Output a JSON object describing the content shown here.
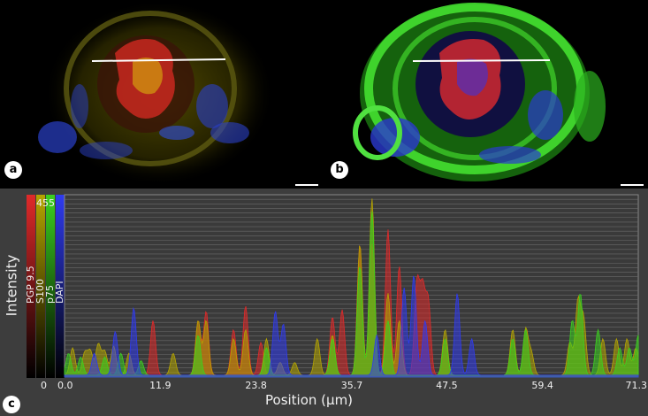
{
  "panels": {
    "a": {
      "label": "a"
    },
    "b": {
      "label": "b"
    },
    "c": {
      "label": "c"
    }
  },
  "colors": {
    "red": "#e02a2a",
    "olive": "#b5a500",
    "green": "#3bd11f",
    "blue": "#2f3bf0",
    "plot_bg": "#3d3d3d",
    "grid": "#6a6a6a"
  },
  "chart_data": {
    "type": "area",
    "xlabel": "Position (µm)",
    "ylabel": "Intensity",
    "x_ticks": [
      "0.0",
      "11.9",
      "23.8",
      "35.7",
      "47.5",
      "59.4",
      "71.3"
    ],
    "xlim": [
      0,
      71.3
    ],
    "legend_bar": {
      "max_label": "455",
      "min_label": "0"
    },
    "series": [
      {
        "name": "PGP 9.5",
        "color": "#e02a2a",
        "peaks": [
          [
            11.0,
            0.3
          ],
          [
            16.6,
            0.3
          ],
          [
            17.6,
            0.35
          ],
          [
            21.0,
            0.25
          ],
          [
            22.5,
            0.38
          ],
          [
            24.4,
            0.18
          ],
          [
            33.3,
            0.32
          ],
          [
            34.5,
            0.36
          ],
          [
            36.7,
            0.72
          ],
          [
            38.2,
            0.72
          ],
          [
            40.2,
            0.8
          ],
          [
            41.6,
            0.6
          ],
          [
            43.8,
            0.5
          ],
          [
            44.5,
            0.45
          ],
          [
            45.2,
            0.4
          ],
          [
            47.3,
            0.2
          ]
        ]
      },
      {
        "name": "S100",
        "color": "#b5a500",
        "peaks": [
          [
            1.0,
            0.15
          ],
          [
            2.5,
            0.12
          ],
          [
            3.2,
            0.13
          ],
          [
            4.2,
            0.17
          ],
          [
            5.0,
            0.13
          ],
          [
            6.1,
            0.16
          ],
          [
            8.0,
            0.12
          ],
          [
            13.5,
            0.12
          ],
          [
            16.6,
            0.3
          ],
          [
            17.6,
            0.3
          ],
          [
            21.0,
            0.2
          ],
          [
            22.5,
            0.25
          ],
          [
            25.1,
            0.2
          ],
          [
            26.8,
            0.07
          ],
          [
            28.6,
            0.07
          ],
          [
            31.4,
            0.2
          ],
          [
            33.3,
            0.22
          ],
          [
            36.7,
            0.72
          ],
          [
            38.2,
            0.97
          ],
          [
            40.2,
            0.45
          ],
          [
            41.6,
            0.3
          ],
          [
            47.3,
            0.25
          ],
          [
            55.7,
            0.25
          ],
          [
            57.3,
            0.25
          ],
          [
            58.0,
            0.12
          ],
          [
            62.8,
            0.18
          ],
          [
            63.8,
            0.4
          ],
          [
            64.5,
            0.3
          ],
          [
            66.9,
            0.2
          ],
          [
            68.6,
            0.2
          ],
          [
            69.9,
            0.2
          ],
          [
            71.0,
            0.15
          ]
        ]
      },
      {
        "name": "p75",
        "color": "#3bd11f",
        "peaks": [
          [
            0.5,
            0.12
          ],
          [
            2.0,
            0.1
          ],
          [
            5.0,
            0.1
          ],
          [
            7.0,
            0.12
          ],
          [
            9.5,
            0.08
          ],
          [
            16.6,
            0.22
          ],
          [
            25.1,
            0.15
          ],
          [
            33.3,
            0.2
          ],
          [
            36.7,
            0.6
          ],
          [
            38.2,
            0.9
          ],
          [
            40.2,
            0.3
          ],
          [
            47.3,
            0.2
          ],
          [
            55.7,
            0.2
          ],
          [
            57.3,
            0.25
          ],
          [
            63.1,
            0.3
          ],
          [
            64.1,
            0.45
          ],
          [
            66.3,
            0.25
          ],
          [
            69.0,
            0.15
          ],
          [
            70.2,
            0.15
          ],
          [
            71.3,
            0.22
          ]
        ]
      },
      {
        "name": "DAPI",
        "color": "#2f3bf0",
        "peaks": [
          [
            3.7,
            0.12
          ],
          [
            6.3,
            0.24
          ],
          [
            8.6,
            0.37
          ],
          [
            26.2,
            0.35
          ],
          [
            27.2,
            0.28
          ],
          [
            38.8,
            0.22
          ],
          [
            42.2,
            0.48
          ],
          [
            43.4,
            0.55
          ],
          [
            44.8,
            0.3
          ],
          [
            48.8,
            0.45
          ],
          [
            50.6,
            0.2
          ]
        ]
      }
    ]
  }
}
